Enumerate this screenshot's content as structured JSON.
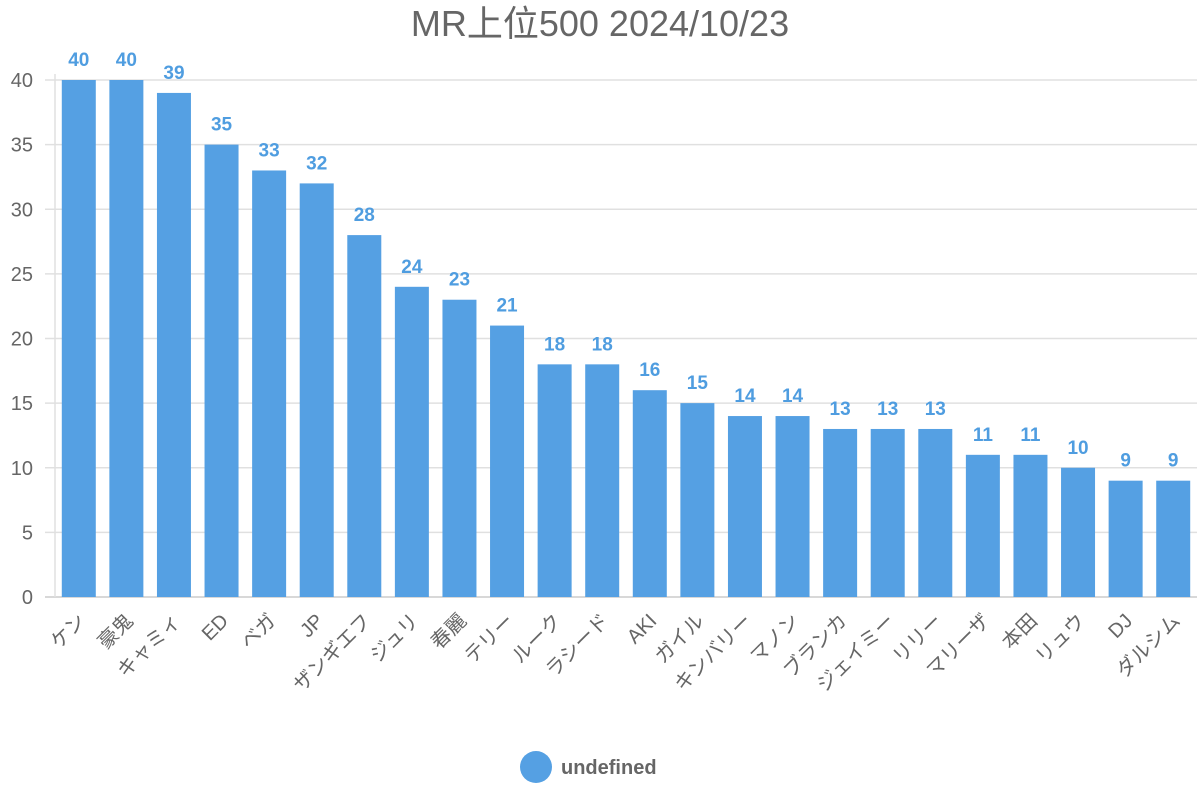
{
  "chart_data": {
    "type": "bar",
    "title": "MR上位500 2024/10/23",
    "xlabel": "",
    "ylabel": "",
    "ylim": [
      0,
      40
    ],
    "yticks": [
      0,
      5,
      10,
      15,
      20,
      25,
      30,
      35,
      40
    ],
    "grid": true,
    "legend_position": "bottom",
    "categories": [
      "ケン",
      "豪鬼",
      "キャミィ",
      "ED",
      "ベガ",
      "JP",
      "ザンギエフ",
      "ジュリ",
      "春麗",
      "テリー",
      "ルーク",
      "ラシード",
      "AKI",
      "ガイル",
      "キンバリー",
      "マノン",
      "ブランカ",
      "ジェイミー",
      "リリー",
      "マリーザ",
      "本田",
      "リュウ",
      "DJ",
      "ダルシム"
    ],
    "series": [
      {
        "name": "undefined",
        "color": "#55a0e3",
        "values": [
          40,
          40,
          39,
          35,
          33,
          32,
          28,
          24,
          23,
          21,
          18,
          18,
          16,
          15,
          14,
          14,
          13,
          13,
          13,
          11,
          11,
          10,
          9,
          9
        ]
      }
    ],
    "data_labels": true
  },
  "colors": {
    "bar": "#55a0e3",
    "label": "#4f9de0",
    "text": "#666666",
    "grid": "#e0e0e0",
    "axis": "#cccccc"
  }
}
